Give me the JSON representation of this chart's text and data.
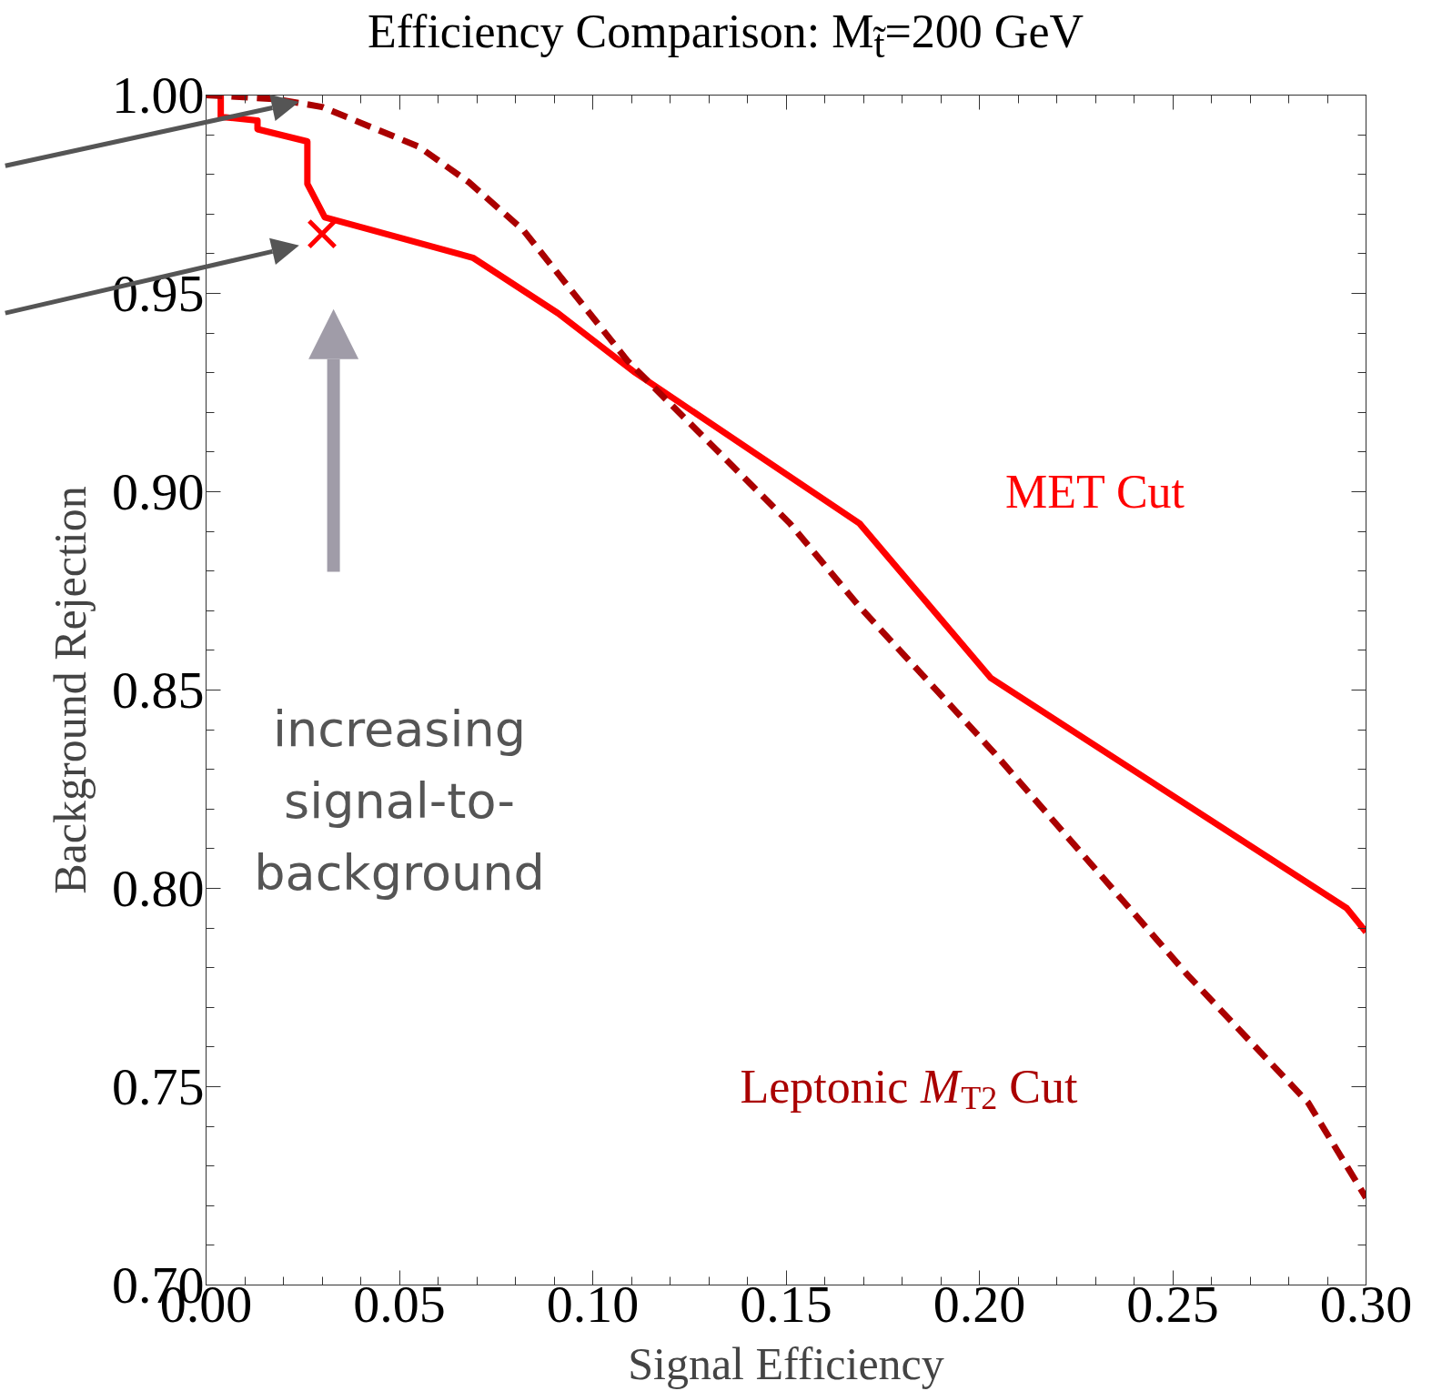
{
  "chart_data": {
    "type": "line",
    "title": "Efficiency Comparison: M$_{t̃}$=200 GeV",
    "xlabel": "Signal Efficiency",
    "ylabel": "Background Rejection",
    "xlim": [
      0,
      0.3
    ],
    "ylim": [
      0.7,
      1.0
    ],
    "xticks": [
      {
        "value": 0,
        "label": "0.00"
      },
      {
        "value": 0.05,
        "label": "0.05"
      },
      {
        "value": 0.1,
        "label": "0.10"
      },
      {
        "value": 0.15,
        "label": "0.15"
      },
      {
        "value": 0.2,
        "label": "0.20"
      },
      {
        "value": 0.25,
        "label": "0.25"
      },
      {
        "value": 0.3,
        "label": "0.30"
      }
    ],
    "yticks": [
      {
        "value": 0.7,
        "label": "0.70"
      },
      {
        "value": 0.75,
        "label": "0.75"
      },
      {
        "value": 0.8,
        "label": "0.80"
      },
      {
        "value": 0.85,
        "label": "0.85"
      },
      {
        "value": 0.9,
        "label": "0.90"
      },
      {
        "value": 0.95,
        "label": "0.95"
      },
      {
        "value": 1.0,
        "label": "1.00"
      }
    ],
    "grid": false,
    "series": [
      {
        "name": "MET Cut",
        "color": "#ff0000",
        "line_style": "solid",
        "x": [
          0,
          0.0038,
          0.0038,
          0.0133,
          0.0133,
          0.0262,
          0.0262,
          0.0307,
          0.069,
          0.091,
          0.111,
          0.169,
          0.203,
          0.295,
          0.3
        ],
        "values": [
          1.0,
          1.0,
          0.9945,
          0.9936,
          0.9914,
          0.9883,
          0.9776,
          0.9692,
          0.959,
          0.945,
          0.93,
          0.892,
          0.853,
          0.795,
          0.789
        ]
      },
      {
        "name": "Leptonic M$_{T2}$ Cut",
        "color": "#aa0000",
        "line_style": "dashed",
        "x": [
          0,
          0.018,
          0.03,
          0.055,
          0.068,
          0.082,
          0.109,
          0.151,
          0.169,
          0.204,
          0.254,
          0.285,
          0.3
        ],
        "values": [
          1.0,
          0.999,
          0.997,
          0.987,
          0.978,
          0.966,
          0.933,
          0.892,
          0.871,
          0.834,
          0.778,
          0.746,
          0.722
        ]
      },
      {
        "type": "scatter",
        "marker": "cross",
        "color": "#ff0000",
        "x": [
          0.03
        ],
        "values": [
          0.965
        ]
      }
    ],
    "annotations": [
      "increasing\nsignal-to-\nbackground"
    ]
  }
}
